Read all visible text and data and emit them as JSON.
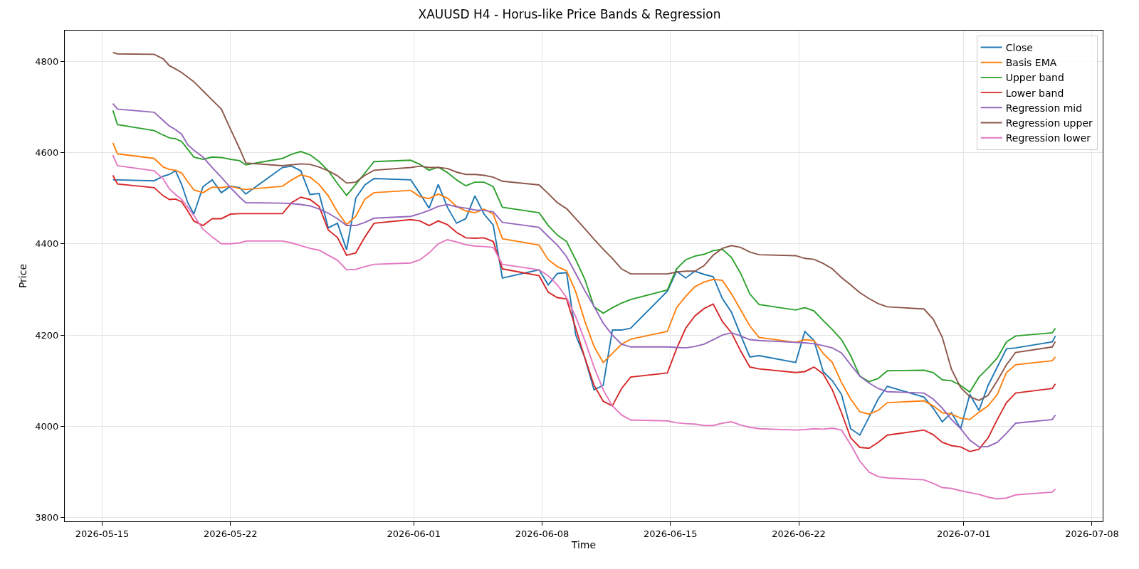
{
  "chart_data": {
    "type": "line",
    "title": "XAUUSD H4 - Horus-like Price Bands & Regression",
    "xlabel": "Time",
    "ylabel": "Price",
    "x": [
      "2026-05-15T14:00",
      "2026-05-15T20:00",
      "2026-05-17T20:00",
      "2026-05-18T08:00",
      "2026-05-18T16:00",
      "2026-05-19T00:00",
      "2026-05-19T08:00",
      "2026-05-19T16:00",
      "2026-05-20T00:00",
      "2026-05-20T12:00",
      "2026-05-21T00:00",
      "2026-05-21T12:00",
      "2026-05-22T00:00",
      "2026-05-22T12:00",
      "2026-05-22T20:00",
      "2026-05-24T20:00",
      "2026-05-25T08:00",
      "2026-05-25T20:00",
      "2026-05-26T08:00",
      "2026-05-26T20:00",
      "2026-05-27T08:00",
      "2026-05-27T20:00",
      "2026-05-28T08:00",
      "2026-05-28T20:00",
      "2026-05-29T08:00",
      "2026-05-29T20:00",
      "2026-05-31T20:00",
      "2026-06-01T08:00",
      "2026-06-01T20:00",
      "2026-06-02T08:00",
      "2026-06-02T20:00",
      "2026-06-03T08:00",
      "2026-06-03T20:00",
      "2026-06-04T08:00",
      "2026-06-04T20:00",
      "2026-06-05T08:00",
      "2026-06-05T20:00",
      "2026-06-07T20:00",
      "2026-06-08T08:00",
      "2026-06-08T20:00",
      "2026-06-09T08:00",
      "2026-06-09T20:00",
      "2026-06-10T08:00",
      "2026-06-10T20:00",
      "2026-06-11T08:00",
      "2026-06-11T20:00",
      "2026-06-12T08:00",
      "2026-06-12T20:00",
      "2026-06-14T20:00",
      "2026-06-15T08:00",
      "2026-06-15T20:00",
      "2026-06-16T08:00",
      "2026-06-16T20:00",
      "2026-06-17T08:00",
      "2026-06-17T20:00",
      "2026-06-18T08:00",
      "2026-06-18T20:00",
      "2026-06-19T08:00",
      "2026-06-19T20:00",
      "2026-06-21T20:00",
      "2026-06-22T08:00",
      "2026-06-22T20:00",
      "2026-06-23T08:00",
      "2026-06-23T20:00",
      "2026-06-24T08:00",
      "2026-06-24T20:00",
      "2026-06-25T08:00",
      "2026-06-25T20:00",
      "2026-06-26T08:00",
      "2026-06-26T20:00",
      "2026-06-28T20:00",
      "2026-06-29T08:00",
      "2026-06-29T20:00",
      "2026-06-30T08:00",
      "2026-06-30T20:00",
      "2026-07-01T08:00",
      "2026-07-01T20:00",
      "2026-07-02T08:00",
      "2026-07-02T20:00",
      "2026-07-03T08:00",
      "2026-07-03T20:00",
      "2026-07-05T20:00",
      "2026-07-06T00:00"
    ],
    "series": [
      {
        "name": "Close",
        "color": "#1f77b4",
        "values": [
          4540,
          4540,
          4538,
          4548,
          4552,
          4560,
          4530,
          4490,
          4465,
          4525,
          4540,
          4512,
          4526,
          4523,
          4509,
          4567,
          4570,
          4560,
          4508,
          4510,
          4435,
          4445,
          4387,
          4500,
          4529,
          4543,
          4540,
          4510,
          4478,
          4530,
          4480,
          4445,
          4455,
          4505,
          4465,
          4441,
          4325,
          4343,
          4310,
          4335,
          4337,
          4200,
          4150,
          4080,
          4090,
          4211,
          4211,
          4215,
          4296,
          4340,
          4325,
          4340,
          4333,
          4328,
          4280,
          4250,
          4200,
          4152,
          4155,
          4140,
          4208,
          4188,
          4120,
          4100,
          4070,
          3995,
          3981,
          4020,
          4060,
          4088,
          4064,
          4040,
          4010,
          4030,
          3995,
          4070,
          4035,
          4090,
          4130,
          4170,
          4172,
          4185,
          4198
        ]
      },
      {
        "name": "Basis EMA",
        "color": "#ff7f0e",
        "values": [
          4621,
          4597,
          4587,
          4568,
          4563,
          4561,
          4555,
          4536,
          4518,
          4512,
          4524,
          4523,
          4526,
          4521,
          4519,
          4526,
          4540,
          4551,
          4546,
          4530,
          4505,
          4470,
          4442,
          4460,
          4498,
          4512,
          4517,
          4503,
          4499,
          4509,
          4500,
          4482,
          4472,
          4468,
          4476,
          4465,
          4411,
          4397,
          4365,
          4350,
          4341,
          4295,
          4230,
          4175,
          4140,
          4160,
          4180,
          4191,
          4208,
          4260,
          4285,
          4306,
          4316,
          4322,
          4320,
          4290,
          4255,
          4220,
          4195,
          4184,
          4190,
          4188,
          4160,
          4140,
          4096,
          4060,
          4032,
          4027,
          4035,
          4052,
          4056,
          4045,
          4030,
          4027,
          4018,
          4015,
          4031,
          4045,
          4070,
          4118,
          4135,
          4144,
          4152
        ]
      },
      {
        "name": "Upper band",
        "color": "#2ca02c",
        "values": [
          4692,
          4661,
          4648,
          4638,
          4632,
          4630,
          4624,
          4607,
          4590,
          4585,
          4590,
          4589,
          4585,
          4582,
          4573,
          4587,
          4596,
          4602,
          4595,
          4580,
          4560,
          4532,
          4506,
          4530,
          4555,
          4580,
          4583,
          4574,
          4561,
          4568,
          4556,
          4540,
          4527,
          4535,
          4535,
          4525,
          4480,
          4468,
          4440,
          4419,
          4405,
          4365,
          4322,
          4262,
          4248,
          4260,
          4270,
          4278,
          4299,
          4345,
          4365,
          4373,
          4377,
          4385,
          4388,
          4370,
          4335,
          4290,
          4267,
          4255,
          4260,
          4253,
          4232,
          4212,
          4190,
          4155,
          4110,
          4098,
          4105,
          4122,
          4123,
          4118,
          4102,
          4100,
          4090,
          4075,
          4108,
          4128,
          4150,
          4185,
          4198,
          4205,
          4215
        ]
      },
      {
        "name": "Lower band",
        "color": "#d62728",
        "values": [
          4550,
          4531,
          4523,
          4505,
          4497,
          4498,
          4492,
          4472,
          4450,
          4440,
          4455,
          4455,
          4465,
          4466,
          4466,
          4466,
          4490,
          4502,
          4497,
          4482,
          4430,
          4414,
          4375,
          4380,
          4415,
          4445,
          4453,
          4450,
          4440,
          4450,
          4442,
          4425,
          4413,
          4412,
          4413,
          4405,
          4345,
          4330,
          4294,
          4282,
          4279,
          4215,
          4150,
          4090,
          4055,
          4045,
          4083,
          4108,
          4117,
          4170,
          4215,
          4242,
          4258,
          4268,
          4230,
          4205,
          4165,
          4130,
          4126,
          4118,
          4120,
          4130,
          4115,
          4080,
          4030,
          3975,
          3954,
          3952,
          3965,
          3981,
          3992,
          3982,
          3965,
          3958,
          3955,
          3945,
          3950,
          3975,
          4015,
          4052,
          4073,
          4083,
          4093
        ]
      },
      {
        "name": "Regression mid",
        "color": "#9467bd",
        "values": [
          4707,
          4695,
          4688,
          4670,
          4658,
          4650,
          4640,
          4617,
          4605,
          4590,
          4567,
          4546,
          4523,
          4502,
          4490,
          4489,
          4488,
          4486,
          4483,
          4476,
          4467,
          4455,
          4440,
          4440,
          4447,
          4456,
          4460,
          4466,
          4473,
          4482,
          4486,
          4481,
          4478,
          4474,
          4473,
          4470,
          4447,
          4436,
          4416,
          4397,
          4372,
          4335,
          4297,
          4263,
          4226,
          4200,
          4180,
          4174,
          4174,
          4173,
          4172,
          4175,
          4180,
          4190,
          4200,
          4205,
          4198,
          4190,
          4188,
          4184,
          4183,
          4181,
          4177,
          4172,
          4161,
          4135,
          4110,
          4095,
          4083,
          4076,
          4073,
          4060,
          4040,
          4015,
          3995,
          3970,
          3955,
          3956,
          3965,
          3985,
          4007,
          4015,
          4025
        ]
      },
      {
        "name": "Regression upper",
        "color": "#8c564b",
        "values": [
          4819,
          4816,
          4815,
          4805,
          4790,
          4783,
          4775,
          4765,
          4755,
          4735,
          4715,
          4695,
          4651,
          4608,
          4577,
          4571,
          4573,
          4575,
          4574,
          4568,
          4560,
          4549,
          4533,
          4535,
          4550,
          4561,
          4567,
          4570,
          4567,
          4567,
          4565,
          4557,
          4552,
          4552,
          4550,
          4546,
          4537,
          4529,
          4510,
          4490,
          4477,
          4455,
          4433,
          4410,
          4388,
          4368,
          4345,
          4334,
          4334,
          4338,
          4340,
          4340,
          4352,
          4375,
          4390,
          4396,
          4392,
          4382,
          4376,
          4374,
          4368,
          4366,
          4357,
          4345,
          4326,
          4310,
          4293,
          4280,
          4269,
          4262,
          4257,
          4235,
          4195,
          4125,
          4085,
          4065,
          4057,
          4068,
          4100,
          4135,
          4162,
          4174,
          4186
        ]
      },
      {
        "name": "Regression lower",
        "color": "#e377c2",
        "values": [
          4594,
          4571,
          4560,
          4542,
          4520,
          4508,
          4497,
          4480,
          4462,
          4432,
          4415,
          4400,
          4400,
          4402,
          4406,
          4406,
          4402,
          4396,
          4390,
          4386,
          4375,
          4364,
          4343,
          4344,
          4350,
          4355,
          4358,
          4365,
          4380,
          4400,
          4409,
          4404,
          4398,
          4395,
          4394,
          4392,
          4355,
          4343,
          4330,
          4310,
          4282,
          4240,
          4188,
          4130,
          4080,
          4045,
          4025,
          4014,
          4012,
          4008,
          4006,
          4005,
          4002,
          4002,
          4007,
          4010,
          4003,
          3998,
          3995,
          3992,
          3993,
          3995,
          3994,
          3996,
          3992,
          3960,
          3924,
          3900,
          3890,
          3887,
          3883,
          3875,
          3866,
          3864,
          3859,
          3855,
          3851,
          3845,
          3841,
          3843,
          3850,
          3856,
          3863
        ]
      }
    ],
    "xlim": [
      "2026-05-12T23:00",
      "2026-07-08T14:00"
    ],
    "xticks": [
      "2026-05-15",
      "2026-05-22",
      "2026-06-01",
      "2026-06-08",
      "2026-06-15",
      "2026-06-22",
      "2026-07-01",
      "2026-07-08"
    ],
    "ylim": [
      3792,
      4867
    ],
    "yticks": [
      3800,
      4000,
      4200,
      4400,
      4600,
      4800
    ],
    "grid": true,
    "legend": "top right",
    "line_style": "solid",
    "marker": "none"
  }
}
